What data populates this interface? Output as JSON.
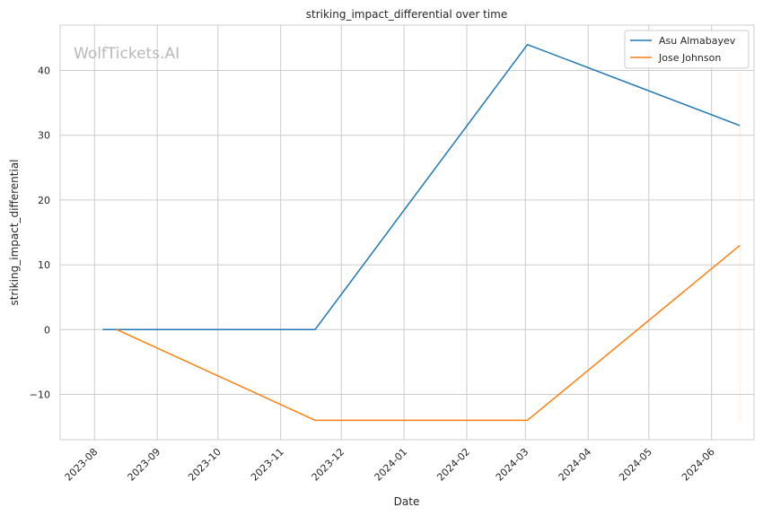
{
  "chart_data": {
    "type": "line",
    "title": "striking_impact_differential over time",
    "xlabel": "Date",
    "ylabel": "striking_impact_differential",
    "watermark": "WolfTickets.AI",
    "x_tick_labels": [
      "2023-08",
      "2023-09",
      "2023-10",
      "2023-11",
      "2023-12",
      "2024-01",
      "2024-02",
      "2024-03",
      "2024-04",
      "2024-05",
      "2024-06"
    ],
    "y_tick_labels": [
      "−10",
      "0",
      "10",
      "20",
      "30",
      "40"
    ],
    "y_ticks": [
      -10,
      0,
      10,
      20,
      30,
      40
    ],
    "xlim": [
      "2023-07-15",
      "2024-06-22"
    ],
    "ylim": [
      -17,
      47
    ],
    "grid": true,
    "legend_position": "top-right",
    "series": [
      {
        "name": "Asu Almabayev",
        "color": "#1f77b4",
        "points": [
          {
            "x": "2023-08-05",
            "y": 0
          },
          {
            "x": "2023-11-18",
            "y": 0
          },
          {
            "x": "2024-03-02",
            "y": 44
          },
          {
            "x": "2024-06-15",
            "y": 31.5
          }
        ]
      },
      {
        "name": "Jose Johnson",
        "color": "#ff7f0e",
        "points": [
          {
            "x": "2023-08-12",
            "y": 0
          },
          {
            "x": "2023-11-18",
            "y": -14
          },
          {
            "x": "2024-03-02",
            "y": -14
          },
          {
            "x": "2024-06-15",
            "y": 13
          }
        ]
      }
    ]
  }
}
